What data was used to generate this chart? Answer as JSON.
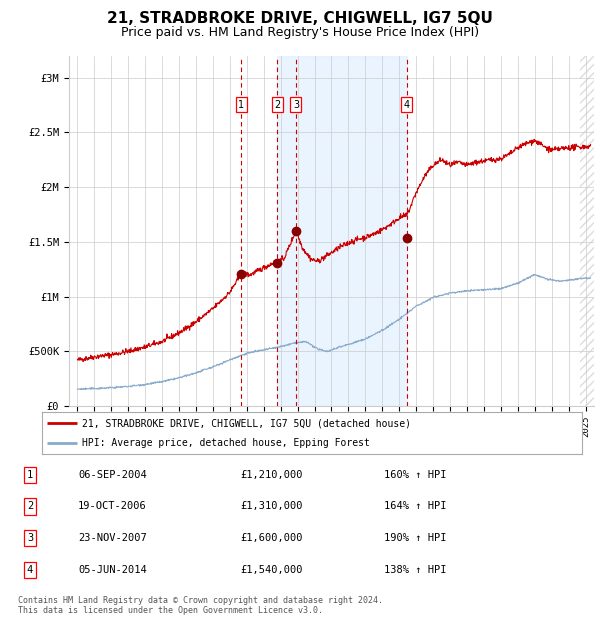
{
  "title": "21, STRADBROKE DRIVE, CHIGWELL, IG7 5QU",
  "subtitle": "Price paid vs. HM Land Registry's House Price Index (HPI)",
  "title_fontsize": 11,
  "subtitle_fontsize": 9,
  "xlim": [
    1994.5,
    2025.5
  ],
  "ylim": [
    0,
    3200000
  ],
  "yticks": [
    0,
    500000,
    1000000,
    1500000,
    2000000,
    2500000,
    3000000
  ],
  "ytick_labels": [
    "£0",
    "£500K",
    "£1M",
    "£1.5M",
    "£2M",
    "£2.5M",
    "£3M"
  ],
  "xtick_years": [
    1995,
    1996,
    1997,
    1998,
    1999,
    2000,
    2001,
    2002,
    2003,
    2004,
    2005,
    2006,
    2007,
    2008,
    2009,
    2010,
    2011,
    2012,
    2013,
    2014,
    2015,
    2016,
    2017,
    2018,
    2019,
    2020,
    2021,
    2022,
    2023,
    2024,
    2025
  ],
  "red_line_color": "#cc0000",
  "blue_line_color": "#88aacc",
  "sale_marker_color": "#880000",
  "sale_marker_size": 6,
  "transaction_dashed_color": "#cc0000",
  "shaded_region_color": "#ddeeff",
  "shaded_region_alpha": 0.6,
  "grid_color": "#cccccc",
  "background_color": "#ffffff",
  "transactions": [
    {
      "label": "1",
      "date_num": 2004.68,
      "price": 1210000
    },
    {
      "label": "2",
      "date_num": 2006.8,
      "price": 1310000
    },
    {
      "label": "3",
      "date_num": 2007.9,
      "price": 1600000
    },
    {
      "label": "4",
      "date_num": 2014.43,
      "price": 1540000
    }
  ],
  "legend_line1": "21, STRADBROKE DRIVE, CHIGWELL, IG7 5QU (detached house)",
  "legend_line2": "HPI: Average price, detached house, Epping Forest",
  "table_rows": [
    {
      "num": "1",
      "date": "06-SEP-2004",
      "price": "£1,210,000",
      "hpi": "160% ↑ HPI"
    },
    {
      "num": "2",
      "date": "19-OCT-2006",
      "price": "£1,310,000",
      "hpi": "164% ↑ HPI"
    },
    {
      "num": "3",
      "date": "23-NOV-2007",
      "price": "£1,600,000",
      "hpi": "190% ↑ HPI"
    },
    {
      "num": "4",
      "date": "05-JUN-2014",
      "price": "£1,540,000",
      "hpi": "138% ↑ HPI"
    }
  ],
  "footnote": "Contains HM Land Registry data © Crown copyright and database right 2024.\nThis data is licensed under the Open Government Licence v3.0.",
  "hpi_shaded_x1": 2006.8,
  "hpi_shaded_x2": 2014.43
}
